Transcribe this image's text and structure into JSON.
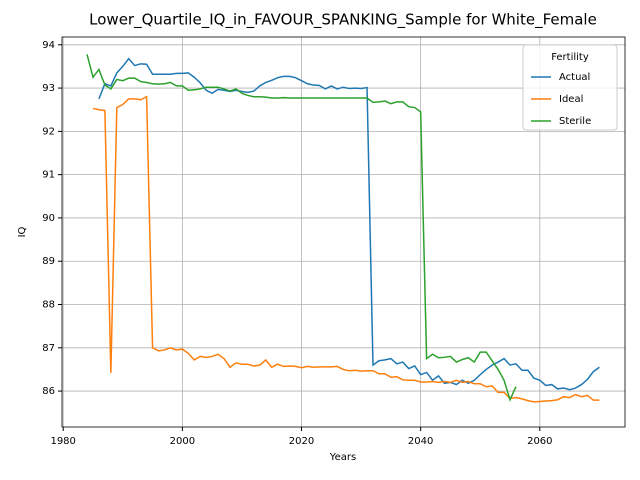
{
  "chart_data": {
    "type": "line",
    "title": "Lower_Quartile_IQ_in_FAVOUR_SPANKING_Sample for White_Female",
    "x_label": "Years",
    "y_label": "IQ",
    "legend_title": "Fertility",
    "legend_position": "upper right",
    "grid": true,
    "x": [
      1984,
      1985,
      1986,
      1987,
      1988,
      1989,
      1990,
      1991,
      1992,
      1993,
      1994,
      1995,
      1996,
      1997,
      1998,
      1999,
      2000,
      2001,
      2002,
      2003,
      2004,
      2005,
      2006,
      2007,
      2008,
      2009,
      2010,
      2011,
      2012,
      2013,
      2014,
      2015,
      2016,
      2017,
      2018,
      2019,
      2020,
      2021,
      2022,
      2023,
      2024,
      2025,
      2026,
      2027,
      2028,
      2029,
      2030,
      2031,
      2032,
      2033,
      2034,
      2035,
      2036,
      2037,
      2038,
      2039,
      2040,
      2041,
      2042,
      2043,
      2044,
      2045,
      2046,
      2047,
      2048,
      2049,
      2050,
      2051,
      2052,
      2053,
      2054,
      2055,
      2056,
      2057,
      2058,
      2059,
      2060,
      2061,
      2062,
      2063,
      2064,
      2065,
      2066,
      2067,
      2068,
      2069,
      2070
    ],
    "series": [
      {
        "name": "Actual",
        "color": "#1f77b4",
        "values": [
          null,
          null,
          92.75,
          93.1,
          93.05,
          93.35,
          93.5,
          93.68,
          93.52,
          93.56,
          93.55,
          93.32,
          93.32,
          93.32,
          93.32,
          93.34,
          93.34,
          93.35,
          93.25,
          93.12,
          92.95,
          92.88,
          92.97,
          92.95,
          92.92,
          92.95,
          92.92,
          92.9,
          92.93,
          93.05,
          93.13,
          93.18,
          93.24,
          93.27,
          93.27,
          93.24,
          93.17,
          93.1,
          93.07,
          93.06,
          92.98,
          93.05,
          92.98,
          93.02,
          92.99,
          93.0,
          92.99,
          93.01,
          86.6,
          86.7,
          86.72,
          86.75,
          86.63,
          86.67,
          86.52,
          86.58,
          86.38,
          86.43,
          86.25,
          86.35,
          86.18,
          86.2,
          86.15,
          86.25,
          86.18,
          86.25,
          86.38,
          86.5,
          86.6,
          86.67,
          86.75,
          86.6,
          86.63,
          86.48,
          86.48,
          86.3,
          86.25,
          86.13,
          86.15,
          86.05,
          86.07,
          86.03,
          86.07,
          86.15,
          86.27,
          86.45,
          86.55
        ]
      },
      {
        "name": "Ideal",
        "color": "#ff7f0e",
        "values": [
          null,
          92.53,
          92.5,
          92.48,
          86.42,
          92.55,
          92.62,
          92.75,
          92.75,
          92.73,
          92.8,
          87.0,
          86.93,
          86.95,
          87.0,
          86.95,
          86.97,
          86.87,
          86.72,
          86.8,
          86.78,
          86.8,
          86.85,
          86.75,
          86.55,
          86.65,
          86.62,
          86.62,
          86.58,
          86.6,
          86.72,
          86.55,
          86.62,
          86.57,
          86.58,
          86.57,
          86.54,
          86.57,
          86.55,
          86.56,
          86.56,
          86.56,
          86.57,
          86.5,
          86.47,
          86.48,
          86.46,
          86.47,
          86.47,
          86.4,
          86.4,
          86.32,
          86.33,
          86.26,
          86.25,
          86.25,
          86.21,
          86.21,
          86.22,
          86.2,
          86.22,
          86.2,
          86.25,
          86.2,
          86.22,
          86.17,
          86.17,
          86.1,
          86.12,
          85.97,
          85.97,
          85.83,
          85.85,
          85.82,
          85.78,
          85.75,
          85.76,
          85.77,
          85.78,
          85.8,
          85.87,
          85.85,
          85.92,
          85.87,
          85.9,
          85.79,
          85.79
        ]
      },
      {
        "name": "Sterile",
        "color": "#2ca02c",
        "values": [
          93.78,
          93.25,
          93.43,
          93.07,
          92.98,
          93.2,
          93.17,
          93.23,
          93.23,
          93.15,
          93.13,
          93.1,
          93.09,
          93.1,
          93.13,
          93.05,
          93.05,
          92.95,
          92.96,
          92.98,
          93.02,
          93.02,
          93.02,
          92.98,
          92.93,
          92.98,
          92.88,
          92.83,
          92.8,
          92.8,
          92.79,
          92.77,
          92.77,
          92.78,
          92.77,
          92.77,
          92.77,
          92.77,
          92.77,
          92.77,
          92.77,
          92.77,
          92.77,
          92.77,
          92.77,
          92.77,
          92.77,
          92.77,
          92.67,
          92.68,
          92.7,
          92.64,
          92.68,
          92.68,
          92.57,
          92.55,
          92.45,
          86.75,
          86.85,
          86.77,
          86.78,
          86.8,
          86.67,
          86.73,
          86.77,
          86.67,
          86.9,
          86.9,
          86.7,
          86.5,
          86.25,
          85.8,
          86.1,
          null,
          null,
          null,
          null,
          null,
          null,
          null,
          null,
          null,
          null,
          null,
          null,
          null,
          null
        ]
      }
    ],
    "xlim": [
      1979.8,
      2074.3
    ],
    "xticks": [
      1980,
      2000,
      2020,
      2040,
      2060
    ],
    "ylim": [
      85.17,
      94.18
    ],
    "yticks": [
      86,
      87,
      88,
      89,
      90,
      91,
      92,
      93,
      94
    ]
  }
}
